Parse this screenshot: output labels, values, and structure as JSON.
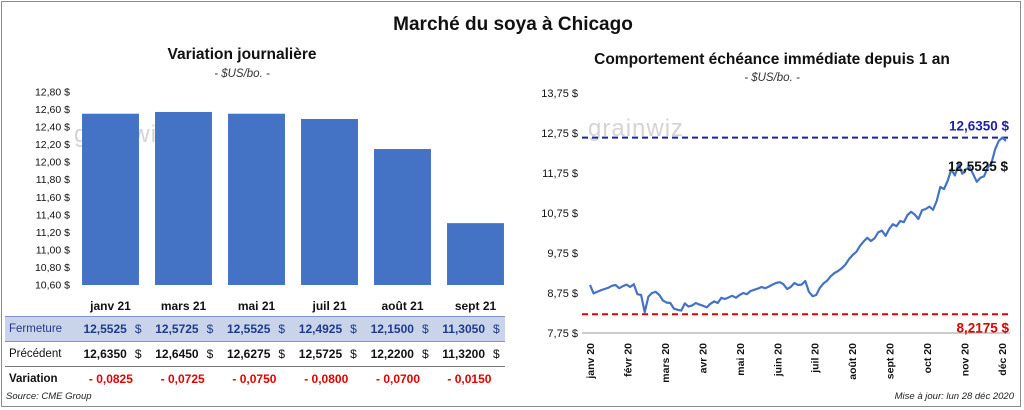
{
  "title": "Marché du soya à Chicago",
  "left_panel": {
    "title": "Variation  journalière",
    "subtitle": "- $US/bo. -"
  },
  "right_panel": {
    "title": "Comportement  échéance immédiate depuis 1 an",
    "subtitle": "- $US/bo. -"
  },
  "watermark": "grainwiz",
  "colors": {
    "bar": "#4472c4",
    "line": "#4472c4",
    "high_line": "#1f1fa8",
    "low_line": "#e00000",
    "table_highlight": "#c9d4ea"
  },
  "chart_data": [
    {
      "type": "bar",
      "categories": [
        "janv 21",
        "mars 21",
        "mai 21",
        "juil 21",
        "août 21",
        "sept 21"
      ],
      "values": [
        12.5525,
        12.5725,
        12.5525,
        12.4925,
        12.15,
        11.305
      ],
      "ylim": [
        10.6,
        12.8
      ],
      "y_ticks": [
        "10,60 $",
        "10,80 $",
        "11,00 $",
        "11,20 $",
        "11,40 $",
        "11,60 $",
        "11,80 $",
        "12,00 $",
        "12,20 $",
        "12,40 $",
        "12,60 $",
        "12,80 $"
      ],
      "grid": false
    },
    {
      "type": "line",
      "x_ticks": [
        "janv 20",
        "févr 20",
        "mars 20",
        "avr 20",
        "mai 20",
        "juin 20",
        "juil 20",
        "août 20",
        "sept 20",
        "oct 20",
        "nov 20",
        "déc 20"
      ],
      "y_ticks": [
        "7,75 $",
        "8,75 $",
        "9,75 $",
        "10,75 $",
        "11,75 $",
        "12,75 $",
        "13,75 $"
      ],
      "ylim": [
        7.75,
        13.75
      ],
      "series": [
        {
          "values": [
            8.95,
            8.74,
            8.78,
            8.82,
            8.85,
            8.88,
            8.93,
            8.95,
            8.87,
            8.92,
            8.96,
            8.9,
            8.97,
            8.72,
            8.7,
            8.27,
            8.66,
            8.75,
            8.78,
            8.7,
            8.56,
            8.51,
            8.5,
            8.36,
            8.33,
            8.31,
            8.49,
            8.41,
            8.44,
            8.5,
            8.46,
            8.43,
            8.39,
            8.48,
            8.54,
            8.5,
            8.63,
            8.6,
            8.64,
            8.68,
            8.63,
            8.7,
            8.75,
            8.72,
            8.8,
            8.83,
            8.86,
            8.9,
            8.87,
            8.91,
            8.96,
            9.0,
            9.02,
            8.97,
            8.85,
            8.9,
            9.0,
            8.95,
            8.96,
            9.05,
            8.78,
            8.67,
            8.7,
            8.88,
            8.99,
            9.06,
            9.17,
            9.25,
            9.3,
            9.37,
            9.46,
            9.6,
            9.7,
            9.78,
            9.93,
            10.04,
            10.13,
            10.05,
            10.12,
            10.27,
            10.31,
            10.18,
            10.35,
            10.47,
            10.42,
            10.55,
            10.52,
            10.7,
            10.78,
            10.71,
            10.6,
            10.82,
            10.85,
            10.91,
            10.83,
            11.05,
            11.4,
            11.35,
            11.55,
            11.84,
            11.69,
            11.98,
            11.73,
            11.84,
            11.9,
            11.72,
            11.53,
            11.63,
            11.67,
            11.89,
            11.99,
            12.34,
            12.55,
            12.635,
            12.5525
          ]
        }
      ],
      "annotations": [
        {
          "label": "12,6350 $",
          "value": 12.635,
          "style": "dashed",
          "color": "#1f1fa8"
        },
        {
          "label": "12,5525 $",
          "value": 12.5525
        },
        {
          "label": "8,2175 $",
          "value": 8.2175,
          "style": "dashed",
          "color": "#e00000"
        }
      ]
    }
  ],
  "table": {
    "rows": [
      {
        "label": "Fermeture",
        "cells": [
          "12,5525",
          "12,5725",
          "12,5525",
          "12,4925",
          "12,1500",
          "11,3050"
        ],
        "unit": "$"
      },
      {
        "label": "Précédent",
        "cells": [
          "12,6350",
          "12,6450",
          "12,6275",
          "12,5725",
          "12,2200",
          "11,3200"
        ],
        "unit": "$"
      },
      {
        "label": "Variation",
        "cells": [
          "- 0,0825",
          "- 0,0725",
          "- 0,0750",
          "- 0,0800",
          "- 0,0700",
          "- 0,0150"
        ],
        "unit": ""
      }
    ]
  },
  "footer": {
    "source": "Source: CME Group",
    "updated": "Mise à jour: lun 28 déc 2020"
  }
}
